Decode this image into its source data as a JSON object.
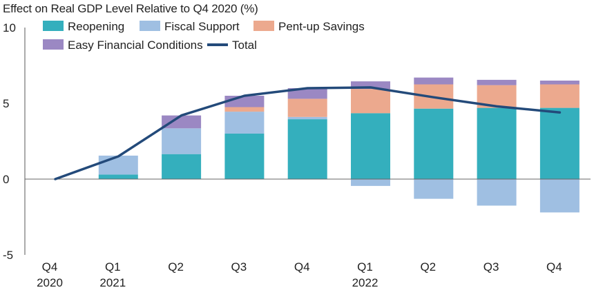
{
  "chart_data": {
    "type": "bar",
    "stacked": true,
    "title": "Effect on Real GDP Level Relative to Q4 2020 (%)",
    "ylim": [
      -5,
      10
    ],
    "yticks": [
      10,
      5,
      0,
      -5
    ],
    "categories": [
      {
        "line1": "Q4",
        "line2": "2020"
      },
      {
        "line1": "Q1",
        "line2": "2021"
      },
      {
        "line1": "Q2",
        "line2": ""
      },
      {
        "line1": "Q3",
        "line2": ""
      },
      {
        "line1": "Q4",
        "line2": ""
      },
      {
        "line1": "Q1",
        "line2": "2022"
      },
      {
        "line1": "Q2",
        "line2": ""
      },
      {
        "line1": "Q3",
        "line2": ""
      },
      {
        "line1": "Q4",
        "line2": ""
      }
    ],
    "series": [
      {
        "name": "Reopening",
        "color": "#34afbd",
        "values": [
          0,
          0.3,
          1.65,
          3.0,
          3.95,
          4.35,
          4.65,
          4.7,
          4.7
        ]
      },
      {
        "name": "Fiscal Support",
        "color": "#9fbfe2",
        "values": [
          0,
          1.25,
          1.7,
          1.45,
          0.15,
          -0.45,
          -1.3,
          -1.75,
          -2.2
        ]
      },
      {
        "name": "Pent-up Savings",
        "color": "#eca98e",
        "values": [
          0,
          0,
          0,
          0.3,
          1.2,
          1.6,
          1.6,
          1.5,
          1.55
        ]
      },
      {
        "name": "Easy Financial Conditions",
        "color": "#9b88c3",
        "values": [
          0,
          0,
          0.85,
          0.75,
          0.7,
          0.5,
          0.45,
          0.35,
          0.25
        ]
      }
    ],
    "line": {
      "name": "Total",
      "color": "#234a7a",
      "values": [
        0,
        1.5,
        4.2,
        5.5,
        6.0,
        6.05,
        5.4,
        4.8,
        4.4
      ]
    },
    "legend_position": "top-left",
    "grid": false
  }
}
